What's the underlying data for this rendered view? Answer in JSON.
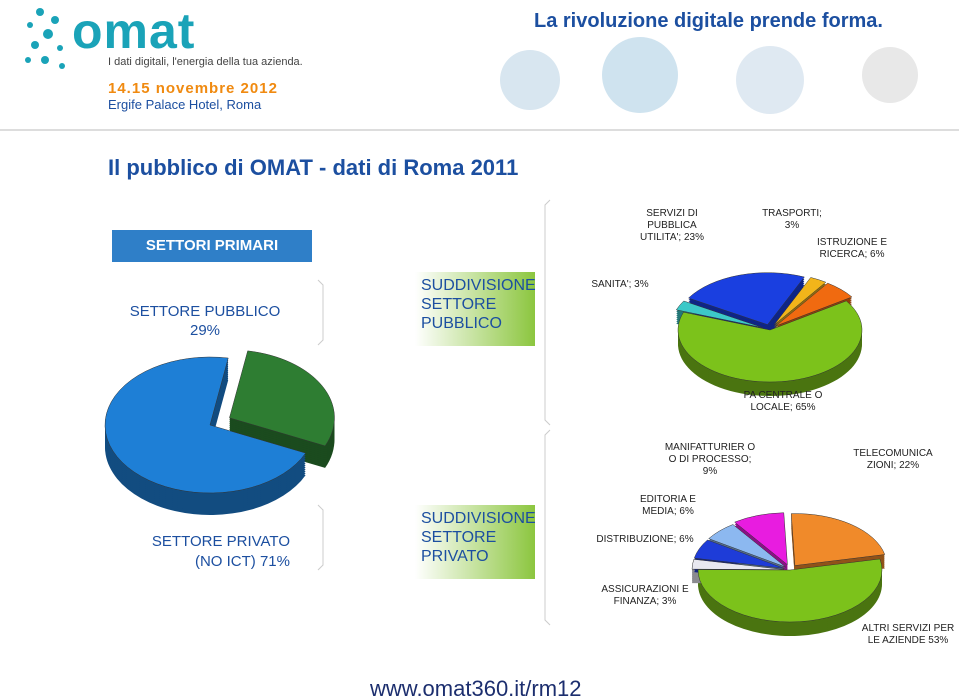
{
  "header": {
    "brand": "omat",
    "tagline": "I dati digitali, l'energia della tua azienda.",
    "slogan": "La rivoluzione digitale prende forma.",
    "date": "14.15 novembre 2012",
    "venue": "Ergife Palace Hotel, Roma"
  },
  "title": "Il pubblico di OMAT - dati di Roma 2011",
  "footer": "www.omat360.it/rm12",
  "chart_data": [
    {
      "type": "pie",
      "title": "SETTORI PRIMARI",
      "categories": [
        "SETTORE PUBBLICO",
        "SETTORE PRIVATO (NO ICT)"
      ],
      "values": [
        29,
        71
      ],
      "value_labels": [
        "29%",
        "71%"
      ],
      "colors": [
        "#2e7d32",
        "#1e7fd6"
      ]
    },
    {
      "type": "pie",
      "title": "SUDDIVISIONE SETTORE PUBBLICO",
      "labels": [
        "PA CENTRALE O LOCALE; 65%",
        "SANITA'; 3%",
        "SERVIZI DI PUBBLICA UTILITA'; 23%",
        "TRASPORTI; 3%",
        "ISTRUZIONE E RICERCA; 6%"
      ],
      "values": [
        65,
        3,
        23,
        3,
        6
      ],
      "colors": [
        "#7cc21b",
        "#3cc8c8",
        "#1a3fe0",
        "#f2b51a",
        "#f06a10"
      ]
    },
    {
      "type": "pie",
      "title": "SUDDIVISIONE SETTORE PRIVATO",
      "labels": [
        "MANIFATTURIER O O DI PROCESSO; 9%",
        "TELECOMUNICA ZIONI; 22%",
        "EDITORIA E MEDIA; 6%",
        "DISTRIBUZIONE; 6%",
        "ASSICURAZIONI E FINANZA; 3%",
        "ALTRI SERVIZI PER LE AZIENDE 53%"
      ],
      "values": [
        9,
        22,
        6,
        6,
        3,
        53
      ],
      "colors": [
        "#e81ce0",
        "#f08a2a",
        "#8cb8f0",
        "#1e3cd8",
        "#e8e8f0",
        "#7cc21b"
      ]
    }
  ]
}
